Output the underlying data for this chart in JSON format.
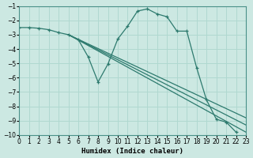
{
  "xlabel": "Humidex (Indice chaleur)",
  "xlim": [
    0,
    23
  ],
  "ylim": [
    -10,
    -1
  ],
  "yticks": [
    -1,
    -2,
    -3,
    -4,
    -5,
    -6,
    -7,
    -8,
    -9,
    -10
  ],
  "xticks": [
    0,
    1,
    2,
    3,
    4,
    5,
    6,
    7,
    8,
    9,
    10,
    11,
    12,
    13,
    14,
    15,
    16,
    17,
    18,
    19,
    20,
    21,
    22,
    23
  ],
  "line_color": "#2d7a6e",
  "bg_color": "#cce8e2",
  "grid_color": "#b0d8d0",
  "series": [
    {
      "name": "curve1_with_markers",
      "x": [
        0,
        1,
        2,
        3,
        4,
        5,
        6,
        7,
        8,
        9,
        10,
        11,
        12,
        13,
        14,
        15,
        16,
        17,
        18,
        19,
        20,
        21,
        22,
        23
      ],
      "y": [
        -2.5,
        -2.5,
        -2.55,
        -2.65,
        -2.85,
        -3.0,
        -3.35,
        -4.55,
        -6.3,
        -5.05,
        -3.3,
        -2.4,
        -1.35,
        -1.2,
        -1.55,
        -1.75,
        -2.75,
        -2.75,
        -5.3,
        -7.55,
        -8.9,
        -9.1,
        -9.8,
        null
      ],
      "marker": true
    },
    {
      "name": "straight_line1",
      "x": [
        5,
        23
      ],
      "y": [
        -3.0,
        -9.8
      ],
      "marker": false
    },
    {
      "name": "straight_line2",
      "x": [
        5,
        23
      ],
      "y": [
        -3.0,
        -9.3
      ],
      "marker": false
    },
    {
      "name": "straight_line3",
      "x": [
        5,
        23
      ],
      "y": [
        -3.0,
        -8.8
      ],
      "marker": false
    }
  ]
}
